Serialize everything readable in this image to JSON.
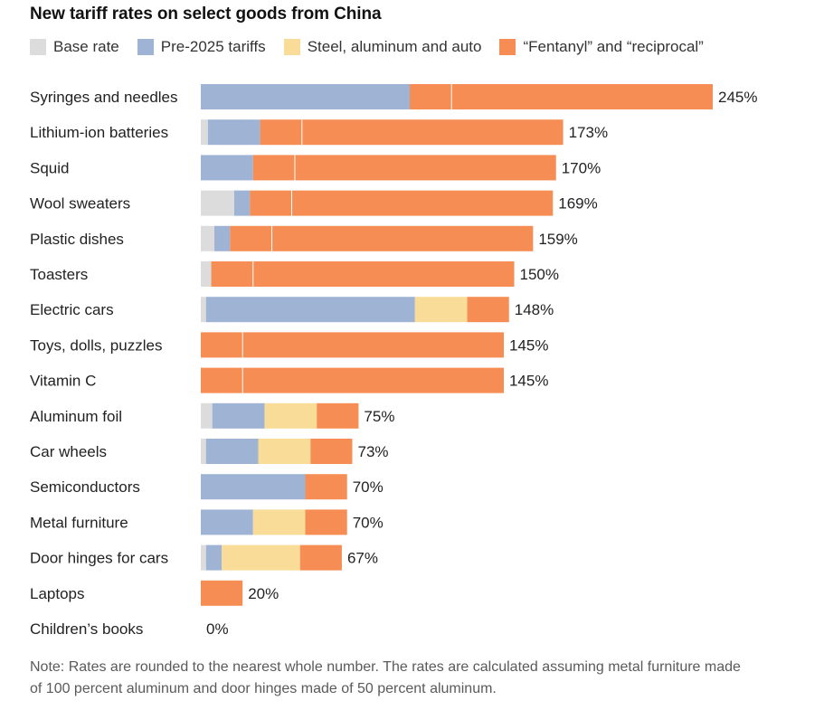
{
  "title": "New tariff rates on select goods from China",
  "legend": [
    {
      "label": "Base rate",
      "color": "#dcdcdc"
    },
    {
      "label": "Pre-2025 tariffs",
      "color": "#9fb4d4"
    },
    {
      "label": "Steel, aluminum and auto",
      "color": "#f8dc97"
    },
    {
      "label": "“Fentanyl” and “reciprocal”",
      "color": "#f58d54"
    }
  ],
  "note": "Note: Rates are rounded to the nearest whole number. The rates are calculated assuming metal furniture made of 100 percent aluminum and door hinges made of 50 percent aluminum.",
  "chart_data": {
    "type": "bar",
    "orientation": "horizontal",
    "stacked": true,
    "title": "New tariff rates on select goods from China",
    "categories": [
      "Syringes and needles",
      "Lithium-ion batteries",
      "Squid",
      "Wool sweaters",
      "Plastic dishes",
      "Toasters",
      "Electric cars",
      "Toys, dolls, puzzles",
      "Vitamin C",
      "Aluminum foil",
      "Car wheels",
      "Semiconductors",
      "Metal furniture",
      "Door hinges for cars",
      "Laptops",
      "Children’s books"
    ],
    "totals": [
      "245%",
      "173%",
      "170%",
      "169%",
      "159%",
      "150%",
      "148%",
      "145%",
      "145%",
      "75%",
      "73%",
      "70%",
      "70%",
      "67%",
      "20%",
      "0%"
    ],
    "series": [
      {
        "name": "Base rate",
        "values": [
          0,
          3.4,
          0,
          16,
          6.5,
          5,
          2.5,
          0,
          0,
          5.5,
          2.5,
          0,
          0,
          2.5,
          0,
          0
        ]
      },
      {
        "name": "Pre-2025 tariffs",
        "values": [
          100,
          25,
          25,
          7.5,
          7.5,
          0,
          100,
          0,
          0,
          25,
          25,
          50,
          25,
          7.5,
          0,
          0
        ]
      },
      {
        "name": "Steel, aluminum and auto",
        "values": [
          0,
          0,
          0,
          0,
          0,
          0,
          25,
          0,
          0,
          25,
          25,
          0,
          25,
          37.5,
          0,
          0
        ]
      },
      {
        "name": "“Fentanyl” and “reciprocal”",
        "values": [
          145,
          145,
          145,
          145,
          145,
          145,
          20,
          145,
          145,
          20,
          20,
          20,
          20,
          20,
          20,
          0
        ]
      }
    ],
    "xlim": [
      0,
      250
    ],
    "grid": false,
    "legend_position": "top"
  }
}
